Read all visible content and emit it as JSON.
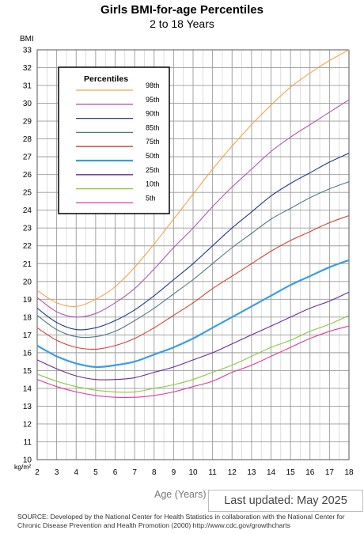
{
  "title": "Girls BMI-for-age Percentiles",
  "subtitle": "2 to 18 Years",
  "updated": "Last updated: May 2025",
  "source": "SOURCE: Developed by the National Center for Health Statistics in collaboration with the National Center for Chronic Disease Prevention and Health Promotion (2000) http://www.cdc.gov/growthcharts",
  "chart_data": {
    "type": "line",
    "title": "Girls BMI-for-age Percentiles",
    "subtitle": "2 to 18 Years",
    "ylabel": "BMI",
    "yunit": "kg/m²",
    "xlabel": "Age (Years)",
    "xlim": [
      2,
      18
    ],
    "ylim": [
      10,
      33
    ],
    "grid": true,
    "legend": {
      "title": "Percentiles",
      "placement": "top-left"
    },
    "x": [
      2,
      3,
      4,
      5,
      6,
      7,
      8,
      9,
      10,
      11,
      12,
      13,
      14,
      15,
      16,
      17,
      18
    ],
    "series": [
      {
        "name": "98th",
        "color": "#f5a54a",
        "values": [
          19.5,
          18.8,
          18.6,
          19.0,
          19.7,
          20.8,
          22.1,
          23.5,
          24.9,
          26.3,
          27.6,
          28.8,
          29.9,
          30.9,
          31.7,
          32.4,
          33.0
        ]
      },
      {
        "name": "95th",
        "color": "#b455b4",
        "values": [
          19.1,
          18.3,
          18.0,
          18.2,
          18.8,
          19.6,
          20.7,
          21.9,
          23.0,
          24.2,
          25.3,
          26.3,
          27.3,
          28.1,
          28.8,
          29.5,
          30.2
        ]
      },
      {
        "name": "90th",
        "color": "#1f3a8a",
        "values": [
          18.5,
          17.7,
          17.3,
          17.4,
          17.8,
          18.4,
          19.2,
          20.1,
          21.0,
          22.0,
          23.0,
          23.9,
          24.8,
          25.5,
          26.1,
          26.7,
          27.2
        ]
      },
      {
        "name": "85th",
        "color": "#4f7a82",
        "values": [
          18.1,
          17.3,
          16.9,
          16.9,
          17.2,
          17.8,
          18.5,
          19.3,
          20.1,
          21.0,
          21.9,
          22.7,
          23.5,
          24.1,
          24.7,
          25.2,
          25.6
        ]
      },
      {
        "name": "75th",
        "color": "#d2413a",
        "values": [
          17.4,
          16.7,
          16.3,
          16.2,
          16.4,
          16.8,
          17.4,
          18.1,
          18.8,
          19.6,
          20.3,
          21.0,
          21.7,
          22.3,
          22.8,
          23.3,
          23.7
        ]
      },
      {
        "name": "50th",
        "color": "#3a9ee0",
        "values": [
          16.4,
          15.8,
          15.4,
          15.2,
          15.3,
          15.5,
          15.9,
          16.3,
          16.8,
          17.4,
          18.0,
          18.6,
          19.2,
          19.8,
          20.3,
          20.8,
          21.2
        ]
      },
      {
        "name": "25th",
        "color": "#6a2a9a",
        "values": [
          15.6,
          15.1,
          14.7,
          14.5,
          14.5,
          14.6,
          14.9,
          15.2,
          15.6,
          16.0,
          16.5,
          17.0,
          17.5,
          18.0,
          18.5,
          18.9,
          19.4
        ]
      },
      {
        "name": "10th",
        "color": "#8cc63f",
        "values": [
          14.8,
          14.4,
          14.1,
          13.9,
          13.8,
          13.8,
          14.0,
          14.2,
          14.5,
          14.9,
          15.3,
          15.8,
          16.3,
          16.7,
          17.2,
          17.6,
          18.1
        ]
      },
      {
        "name": "5th",
        "color": "#e0399a",
        "values": [
          14.5,
          14.1,
          13.8,
          13.6,
          13.5,
          13.5,
          13.6,
          13.8,
          14.1,
          14.4,
          14.9,
          15.3,
          15.8,
          16.3,
          16.8,
          17.2,
          17.5
        ]
      }
    ]
  }
}
